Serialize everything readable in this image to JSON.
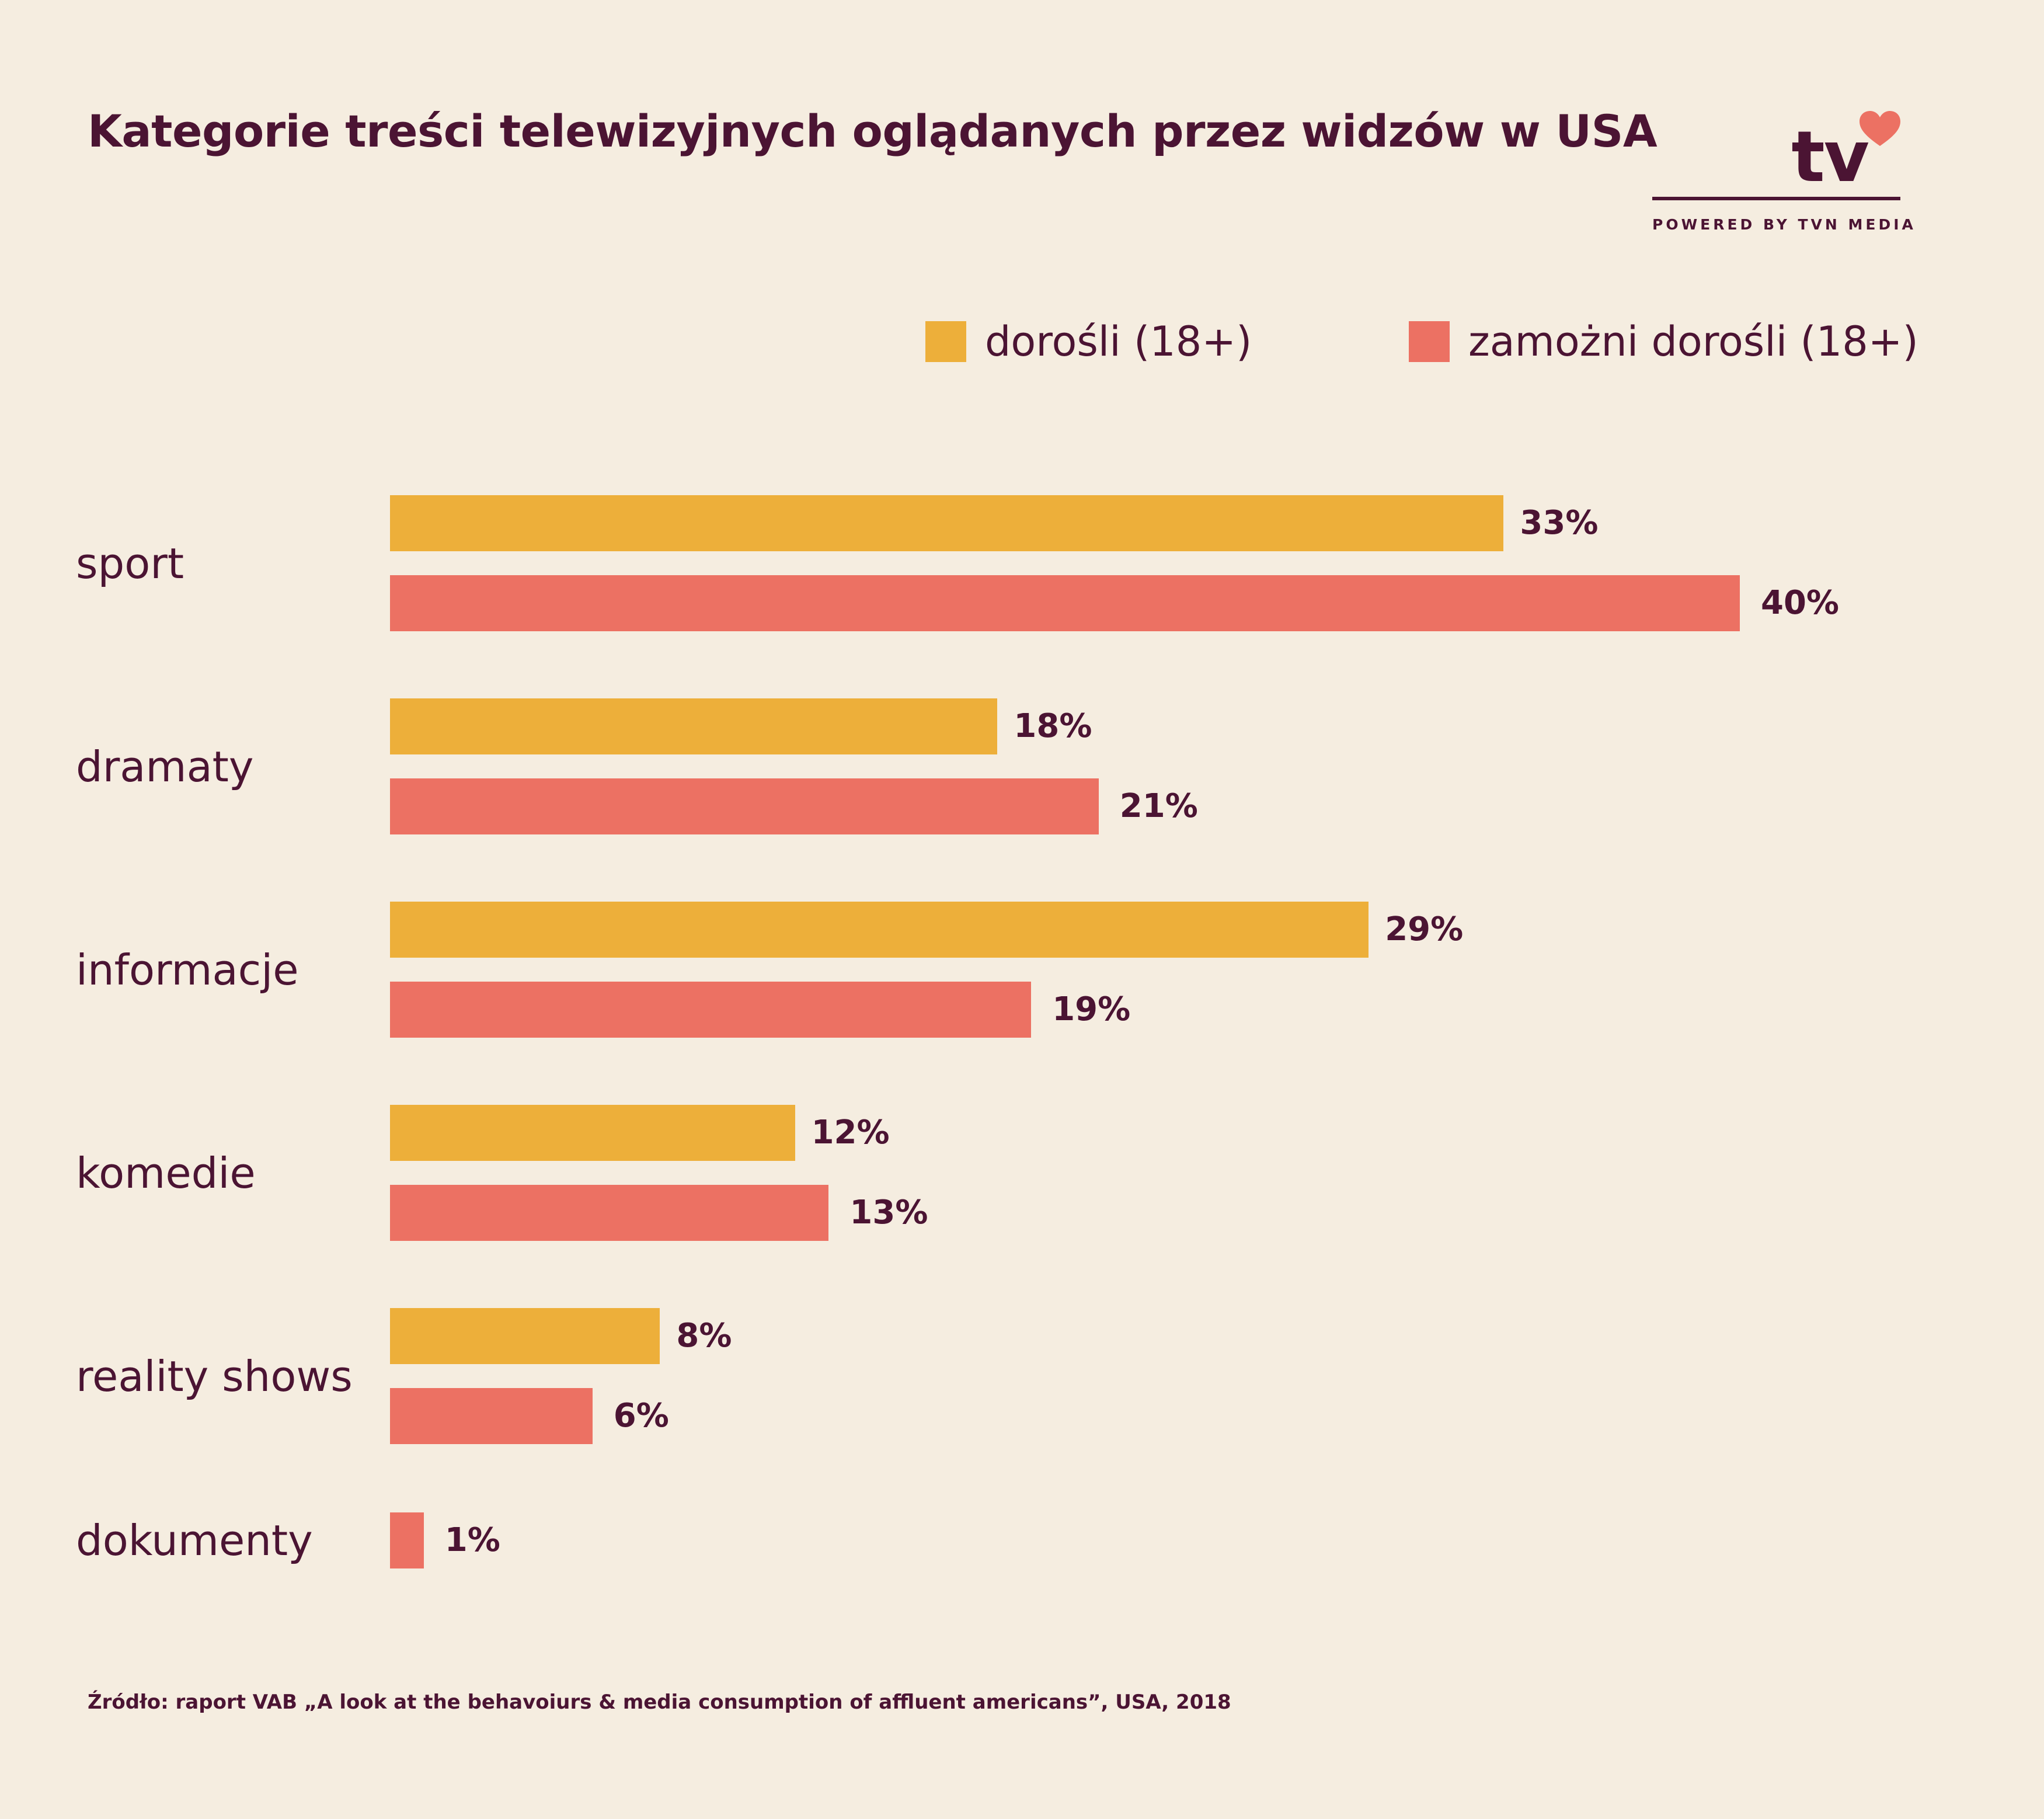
{
  "title": "Kategorie treści telewizyjnych oglądanych przez widzów w USA",
  "logo": {
    "text": "tv",
    "tagline": "POWERED BY TVN MEDIA",
    "heart_icon": "heart-icon"
  },
  "source": "Źródło: raport VAB „A look at the behavoiurs & media consumption of affluent americans”, USA, 2018",
  "colors": {
    "background": "#f5ede0",
    "text": "#4b1433",
    "series_adults": "#edaf3a",
    "series_affluent": "#ec7163"
  },
  "chart_data": {
    "type": "bar",
    "orientation": "horizontal",
    "title": "Kategorie treści telewizyjnych oglądanych przez widzów w USA",
    "xlabel": "",
    "ylabel": "",
    "xlim": [
      0,
      40
    ],
    "grid": false,
    "legend_position": "top-right",
    "categories": [
      "sport",
      "dramaty",
      "informacje",
      "komedie",
      "reality shows",
      "dokumenty"
    ],
    "series": [
      {
        "name": "dorośli (18+)",
        "color": "#edaf3a",
        "values": [
          33,
          18,
          29,
          12,
          8,
          null
        ],
        "labels": [
          "33%",
          "18%",
          "29%",
          "12%",
          "8%",
          null
        ]
      },
      {
        "name": "zamożni dorośli (18+)",
        "color": "#ec7163",
        "values": [
          40,
          21,
          19,
          13,
          6,
          1
        ],
        "labels": [
          "40%",
          "21%",
          "19%",
          "13%",
          "6%",
          "1%"
        ]
      }
    ]
  }
}
